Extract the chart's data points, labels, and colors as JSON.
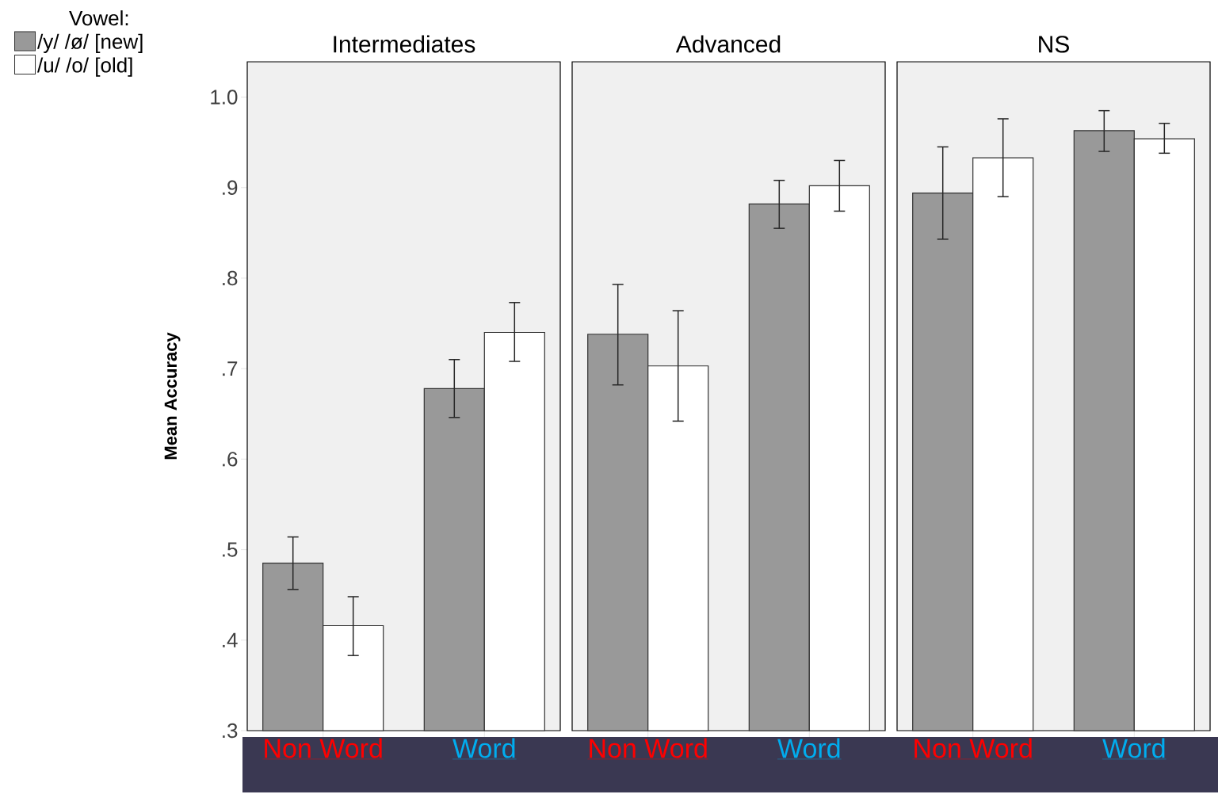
{
  "chart_data": [
    {
      "type": "bar",
      "title": "Intermediates",
      "ylabel": "Mean Accuracy",
      "legend_title": "Vowel:",
      "legend": "top left",
      "categories": [
        "Non Word",
        "Word"
      ],
      "ylim": [
        0.3,
        1.039
      ],
      "yticks": [
        {
          "value": 0.3,
          "label": ".3"
        },
        {
          "value": 0.4,
          "label": ".4"
        },
        {
          "value": 0.5,
          "label": ".5"
        },
        {
          "value": 0.6,
          "label": ".6"
        },
        {
          "value": 0.7,
          "label": ".7"
        },
        {
          "value": 0.8,
          "label": ".8"
        },
        {
          "value": 0.9,
          "label": ".9"
        },
        {
          "value": 1.0,
          "label": "1.0"
        }
      ],
      "series": [
        {
          "name": "/y/ /ø/ [new]",
          "color": "#999999",
          "values": [
            0.485,
            0.678
          ],
          "errors": [
            [
              0.456,
              0.514
            ],
            [
              0.646,
              0.71
            ]
          ]
        },
        {
          "name": "/u/ /o/  [old]",
          "color": "#ffffff",
          "values": [
            0.416,
            0.74
          ],
          "errors": [
            [
              0.383,
              0.448
            ],
            [
              0.708,
              0.773
            ]
          ]
        }
      ]
    },
    {
      "type": "bar",
      "title": "Advanced",
      "categories": [
        "Non Word",
        "Word"
      ],
      "ylim": [
        0.3,
        1.039
      ],
      "tick_labels": "x",
      "series": [
        {
          "color": "#999999",
          "values": [
            0.738,
            0.882
          ],
          "errors": [
            [
              0.682,
              0.793
            ],
            [
              0.855,
              0.908
            ]
          ]
        },
        {
          "color": "#ffffff",
          "values": [
            0.703,
            0.902
          ],
          "errors": [
            [
              0.642,
              0.764
            ],
            [
              0.874,
              0.93
            ]
          ]
        }
      ]
    },
    {
      "type": "bar",
      "title": "NS",
      "categories": [
        "Non Word",
        "Word"
      ],
      "ylim": [
        0.3,
        1.039
      ],
      "tick_labels": "x",
      "series": [
        {
          "color": "#999999",
          "values": [
            0.894,
            0.963
          ],
          "errors": [
            [
              0.843,
              0.945
            ],
            [
              0.94,
              0.985
            ]
          ]
        },
        {
          "color": "#ffffff",
          "values": [
            0.933,
            0.954
          ],
          "errors": [
            [
              0.89,
              0.976
            ],
            [
              0.938,
              0.971
            ]
          ]
        }
      ]
    }
  ]
}
